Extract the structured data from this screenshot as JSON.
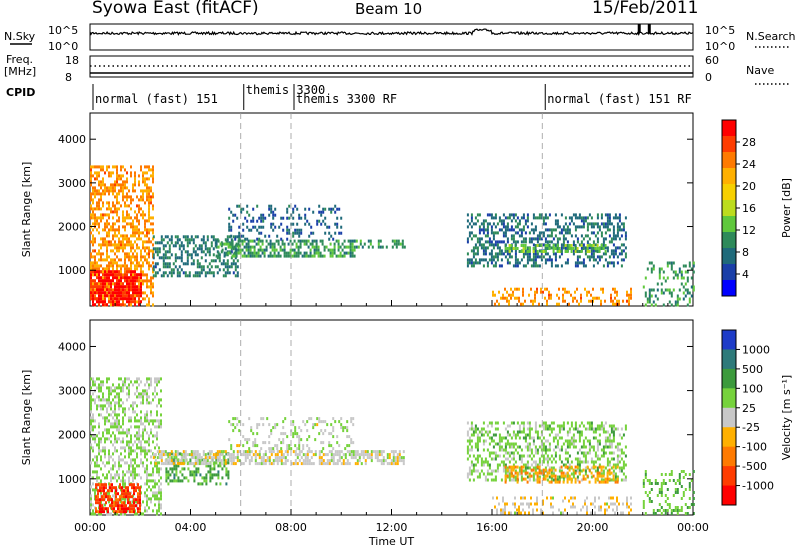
{
  "header": {
    "station": "Syowa East (fitACF)",
    "beam": "Beam 10",
    "date": "15/Feb/2011"
  },
  "top_panels": {
    "nsky_label": "N.Sky",
    "nsearch_label": "N.Search",
    "freq_label": "Freq.",
    "freq_unit": "[MHz]",
    "nave_label": "Nave",
    "cpid_label": "CPID",
    "noise_ticks_left": [
      "10^5",
      "10^0"
    ],
    "noise_ticks_right": [
      "10^5",
      "10^0"
    ],
    "freq_ticks_left": [
      "18",
      "8"
    ],
    "nave_ticks_right": [
      "60",
      "0"
    ]
  },
  "cpid_modes": [
    {
      "label": "normal (fast) 151",
      "start_hour": 0.0
    },
    {
      "label": "themis 3300",
      "start_hour": 6.0
    },
    {
      "label": "themis 3300 RF",
      "start_hour": 8.0
    },
    {
      "label": "normal (fast) 151 RF",
      "start_hour": 18.0
    }
  ],
  "power_colorbar": {
    "title": "Power [dB]",
    "ticks": [
      "28",
      "24",
      "20",
      "16",
      "12",
      "8",
      "4"
    ],
    "colors": [
      "#ff0000",
      "#ff3c00",
      "#ff7a00",
      "#ffb000",
      "#f7d000",
      "#bcdc1e",
      "#5fc83c",
      "#2e8a5a",
      "#1f6a7a",
      "#1a3fa8",
      "#0000ff"
    ]
  },
  "velocity_colorbar": {
    "title": "Velocity [m s⁻¹]",
    "ticks": [
      "1000",
      "500",
      "100",
      "25",
      "-25",
      "-100",
      "-500",
      "-1000"
    ],
    "colors": [
      "#1e3cc8",
      "#2e7a7a",
      "#3c9a3c",
      "#76d23c",
      "#c8c8c8",
      "#ffb000",
      "#ff7a00",
      "#ff3c00",
      "#ff0000"
    ]
  },
  "chart_data": [
    {
      "type": "heatmap",
      "name": "power",
      "ylabel": "Slant Range [km]",
      "ylim": [
        180,
        4600
      ],
      "yticks": [
        1000,
        2000,
        3000,
        4000
      ],
      "xlim": [
        0,
        24
      ],
      "xticks": [
        "00:00",
        "04:00",
        "08:00",
        "12:00",
        "16:00",
        "20:00",
        "00:00"
      ],
      "colorbar_range_db": [
        0,
        30
      ],
      "scatter_regions": [
        {
          "t0": 0.0,
          "t1": 2.5,
          "r0": 220,
          "r1": 3400,
          "level": 22,
          "density": 0.55
        },
        {
          "t0": 0.0,
          "t1": 2.0,
          "r0": 220,
          "r1": 1000,
          "level": 28,
          "density": 0.8
        },
        {
          "t0": 2.5,
          "t1": 6.0,
          "r0": 900,
          "r1": 1800,
          "level": 8,
          "density": 0.45
        },
        {
          "t0": 5.0,
          "t1": 10.5,
          "r0": 1300,
          "r1": 1700,
          "level": 10,
          "density": 0.6
        },
        {
          "t0": 5.5,
          "t1": 10.0,
          "r0": 1700,
          "r1": 2500,
          "level": 6,
          "density": 0.25
        },
        {
          "t0": 10.5,
          "t1": 12.5,
          "r0": 1500,
          "r1": 1700,
          "level": 10,
          "density": 0.45
        },
        {
          "t0": 15.0,
          "t1": 21.3,
          "r0": 1100,
          "r1": 2300,
          "level": 7,
          "density": 0.45
        },
        {
          "t0": 16.5,
          "t1": 20.5,
          "r0": 1400,
          "r1": 1600,
          "level": 12,
          "density": 0.55
        },
        {
          "t0": 16.0,
          "t1": 21.5,
          "r0": 220,
          "r1": 600,
          "level": 22,
          "density": 0.35
        },
        {
          "t0": 22.0,
          "t1": 24.0,
          "r0": 220,
          "r1": 1200,
          "level": 10,
          "density": 0.3
        }
      ]
    },
    {
      "type": "heatmap",
      "name": "velocity",
      "ylabel": "Slant Range [km]",
      "ylim": [
        180,
        4600
      ],
      "yticks": [
        1000,
        2000,
        3000,
        4000
      ],
      "xlim": [
        0,
        24
      ],
      "xticks": [
        "00:00",
        "04:00",
        "08:00",
        "12:00",
        "16:00",
        "20:00",
        "00:00"
      ],
      "xlabel": "Time UT",
      "colorbar_range_ms": [
        -1000,
        1000
      ],
      "scatter_regions": [
        {
          "t0": 0.0,
          "t1": 2.8,
          "r0": 220,
          "r1": 3300,
          "level": -150,
          "density": 0.45
        },
        {
          "t0": 0.2,
          "t1": 2.0,
          "r0": 220,
          "r1": 900,
          "level": 700,
          "density": 0.7
        },
        {
          "t0": 3.0,
          "t1": 5.5,
          "r0": 900,
          "r1": 1600,
          "level": -400,
          "density": 0.45
        },
        {
          "t0": 2.5,
          "t1": 12.5,
          "r0": 1350,
          "r1": 1650,
          "level": 0,
          "density": 0.65
        },
        {
          "t0": 5.5,
          "t1": 10.5,
          "r0": 1700,
          "r1": 2400,
          "level": -60,
          "density": 0.25
        },
        {
          "t0": 15.0,
          "t1": 21.3,
          "r0": 1000,
          "r1": 2300,
          "level": -200,
          "density": 0.45
        },
        {
          "t0": 16.5,
          "t1": 21.0,
          "r0": 900,
          "r1": 1300,
          "level": 300,
          "density": 0.4
        },
        {
          "t0": 16.0,
          "t1": 21.5,
          "r0": 220,
          "r1": 600,
          "level": 60,
          "density": 0.3
        },
        {
          "t0": 22.0,
          "t1": 24.0,
          "r0": 220,
          "r1": 1200,
          "level": -300,
          "density": 0.3
        }
      ]
    }
  ]
}
